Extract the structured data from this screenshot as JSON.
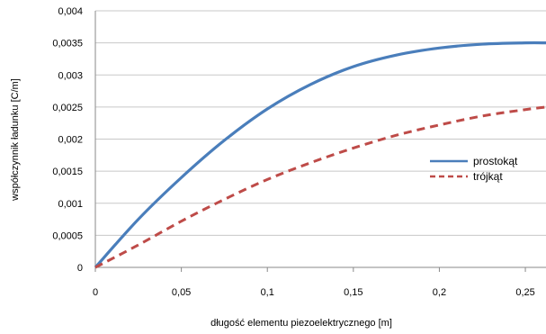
{
  "chart_data": {
    "type": "line",
    "xlabel": "długość elementu piezoelektrycznego [m]",
    "ylabel": "współczynnik ładunku [C/m]",
    "xlim": [
      0,
      0.262
    ],
    "ylim": [
      0,
      0.004
    ],
    "x_ticks": [
      "0",
      "0,05",
      "0,1",
      "0,15",
      "0,2",
      "0,25"
    ],
    "y_ticks": [
      "0",
      "0,0005",
      "0,001",
      "0,0015",
      "0,002",
      "0,0025",
      "0,003",
      "0,0035",
      "0,004"
    ],
    "grid": "horizontal",
    "legend_position": "right",
    "series": [
      {
        "name": "prostokąt",
        "color": "#4a7ebb",
        "style": "solid",
        "x": [
          0,
          0.025,
          0.05,
          0.075,
          0.1,
          0.125,
          0.15,
          0.175,
          0.2,
          0.225,
          0.25,
          0.262
        ],
        "y": [
          0,
          0.00075,
          0.0014,
          0.00198,
          0.00247,
          0.00285,
          0.00313,
          0.00331,
          0.00342,
          0.00348,
          0.0035,
          0.0035
        ]
      },
      {
        "name": "trójkąt",
        "color": "#be4b48",
        "style": "dashed",
        "x": [
          0,
          0.025,
          0.05,
          0.075,
          0.1,
          0.125,
          0.15,
          0.175,
          0.2,
          0.225,
          0.25,
          0.262
        ],
        "y": [
          0,
          0.00035,
          0.00072,
          0.00106,
          0.00137,
          0.00163,
          0.00186,
          0.00206,
          0.00222,
          0.00236,
          0.00246,
          0.0025
        ]
      }
    ]
  }
}
